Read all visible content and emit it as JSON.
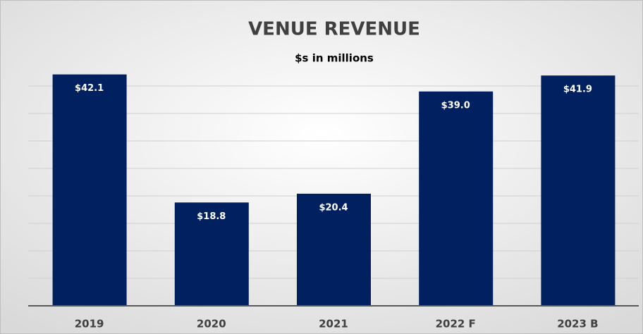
{
  "chart_data": {
    "type": "bar",
    "title": "VENUE REVENUE",
    "subtitle": "$s in millions",
    "categories": [
      "2019",
      "2020",
      "2021",
      "2022 F",
      "2023 B"
    ],
    "values": [
      42.1,
      18.8,
      20.4,
      39.0,
      41.9
    ],
    "value_labels": [
      "$42.1",
      "$18.8",
      "$20.4",
      "$39.0",
      "$41.9"
    ],
    "color": "#002060",
    "ylim": [
      0,
      45
    ],
    "yticks": [
      0,
      5,
      10,
      15,
      20,
      25,
      30,
      35,
      40
    ],
    "ytick_labels": false,
    "grid": true
  }
}
